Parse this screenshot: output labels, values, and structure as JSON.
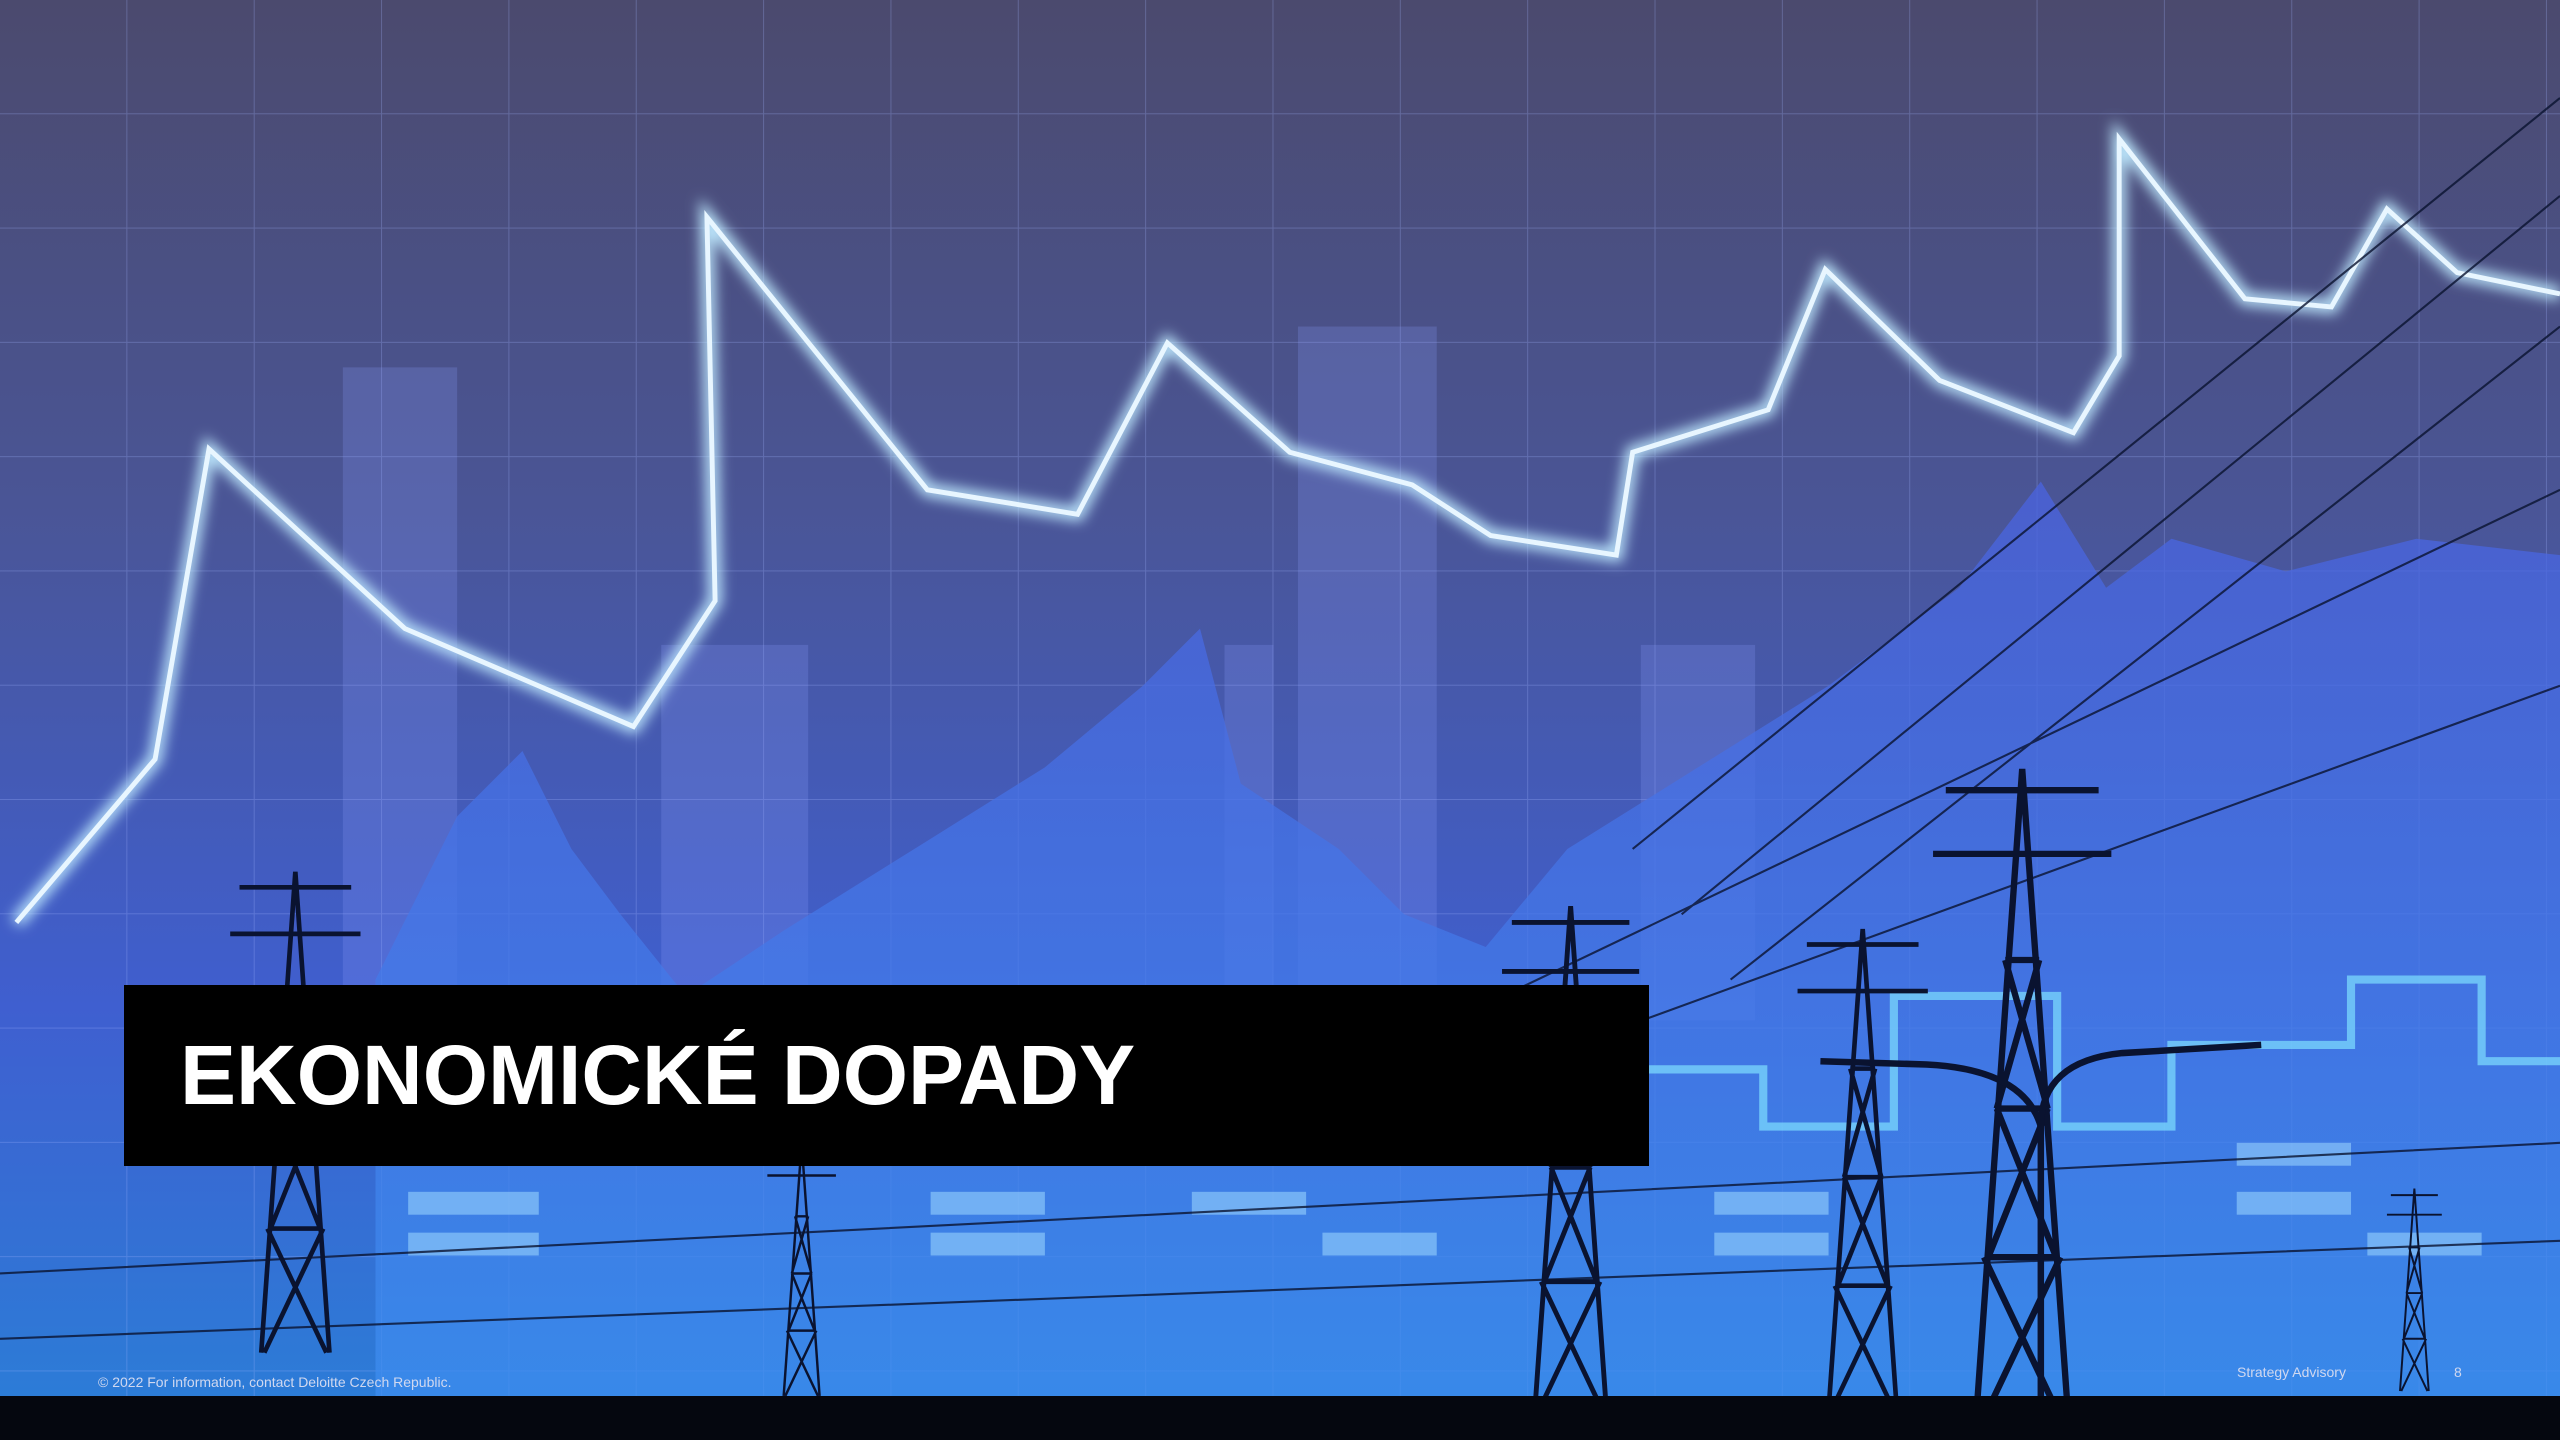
{
  "slide": {
    "title": "EKONOMICKÉ DOPADY",
    "footer": {
      "copyright": "© 2022 For information, contact Deloitte Czech Republic.",
      "section": "Strategy Advisory",
      "page_number": 8
    }
  }
}
